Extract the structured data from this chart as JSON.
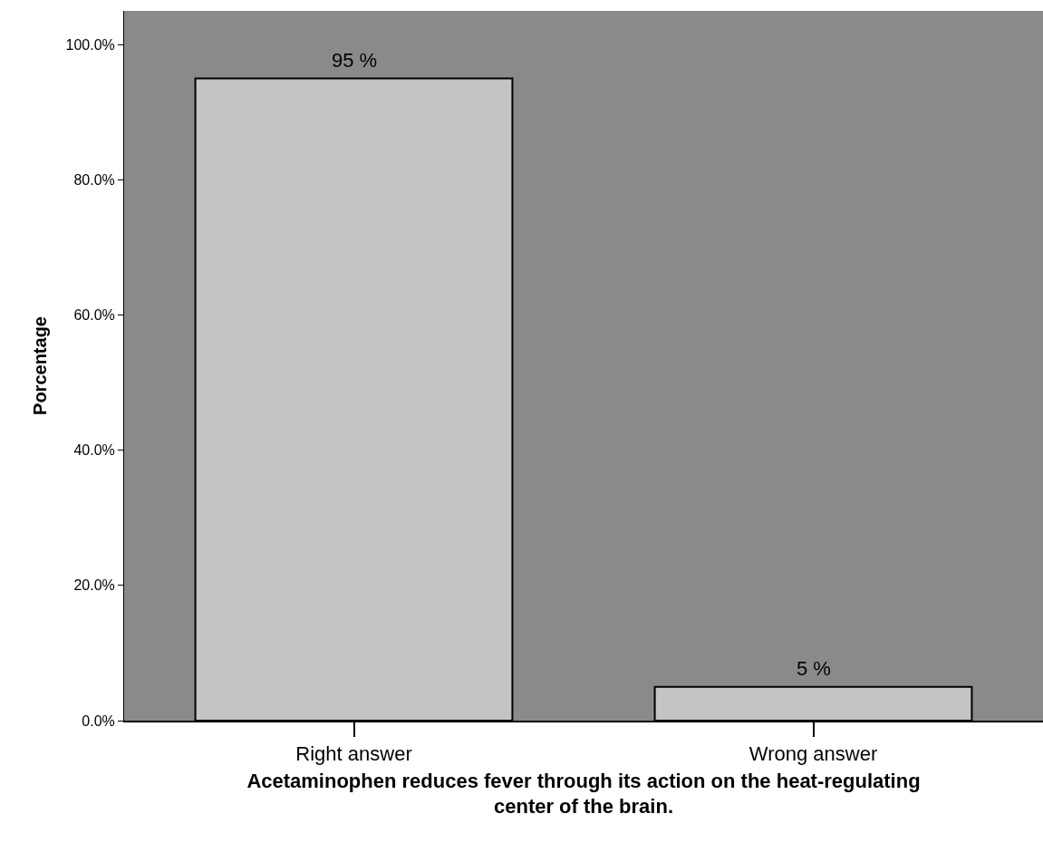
{
  "chart_data": {
    "type": "bar",
    "xlabel": "Acetaminophen reduces fever through its action on the heat-regulating center of the brain.",
    "ylabel": "Porcentage",
    "categories": [
      "Right answer",
      "Wrong answer"
    ],
    "values": [
      95,
      5
    ],
    "value_labels": [
      "95 %",
      "5 %"
    ],
    "color": "#c4c4c4",
    "ylim": [
      0,
      105
    ],
    "yticks": [
      {
        "value": 0,
        "label": "0.0%"
      },
      {
        "value": 20,
        "label": "20.0%"
      },
      {
        "value": 40,
        "label": "40.0%"
      },
      {
        "value": 60,
        "label": "60.0%"
      },
      {
        "value": 80,
        "label": "80.0%"
      },
      {
        "value": 100,
        "label": "100.0%"
      }
    ],
    "grid": false
  }
}
